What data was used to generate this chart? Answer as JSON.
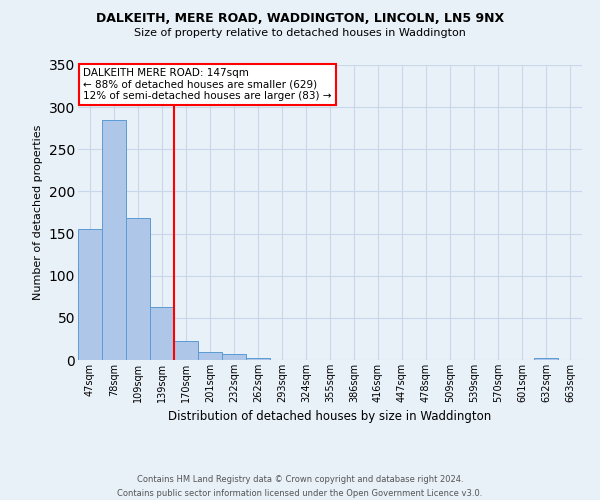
{
  "title": "DALKEITH, MERE ROAD, WADDINGTON, LINCOLN, LN5 9NX",
  "subtitle": "Size of property relative to detached houses in Waddington",
  "xlabel": "Distribution of detached houses by size in Waddington",
  "ylabel": "Number of detached properties",
  "bar_values": [
    155,
    285,
    168,
    63,
    22,
    10,
    7,
    2,
    0,
    0,
    0,
    0,
    0,
    0,
    0,
    0,
    0,
    0,
    0,
    2,
    0
  ],
  "tick_labels": [
    "47sqm",
    "78sqm",
    "109sqm",
    "139sqm",
    "170sqm",
    "201sqm",
    "232sqm",
    "262sqm",
    "293sqm",
    "324sqm",
    "355sqm",
    "386sqm",
    "416sqm",
    "447sqm",
    "478sqm",
    "509sqm",
    "539sqm",
    "570sqm",
    "601sqm",
    "632sqm",
    "663sqm"
  ],
  "bar_color": "#aec6e8",
  "bar_edgecolor": "#5b9bd5",
  "vline_x_index": 3.5,
  "vline_color": "red",
  "ylim": [
    0,
    350
  ],
  "yticks": [
    0,
    50,
    100,
    150,
    200,
    250,
    300,
    350
  ],
  "annotation_title": "DALKEITH MERE ROAD: 147sqm",
  "annotation_line1": "← 88% of detached houses are smaller (629)",
  "annotation_line2": "12% of semi-detached houses are larger (83) →",
  "annotation_box_color": "#ffffff",
  "annotation_box_edgecolor": "red",
  "grid_color": "#c8d8ea",
  "background_color": "#e8f0f8",
  "footer_line1": "Contains HM Land Registry data © Crown copyright and database right 2024.",
  "footer_line2": "Contains public sector information licensed under the Open Government Licence v3.0."
}
